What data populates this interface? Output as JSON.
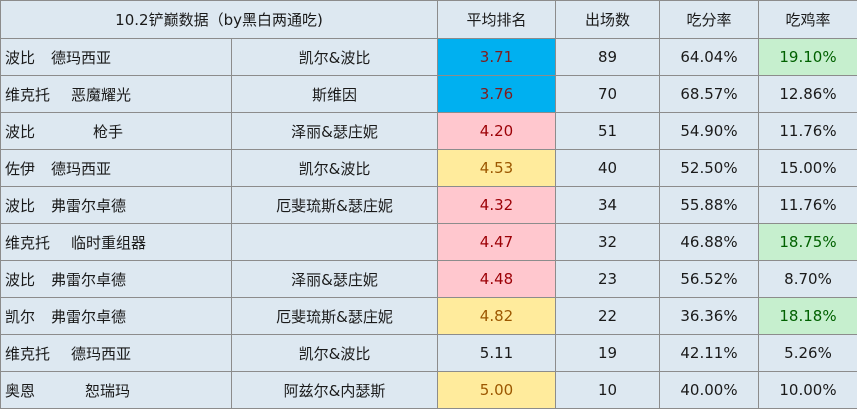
{
  "header": {
    "title": "10.2铲巅数据（by黑白两通吃)",
    "col_rank": "平均排名",
    "col_games": "出场数",
    "col_score": "吃分率",
    "col_win": "吃鸡率"
  },
  "colors": {
    "page_bg": "#dde8f1",
    "blue": "#00b0f0",
    "pink": "#ffc7ce",
    "yellow": "#ffeb9c",
    "green": "#c6efce"
  },
  "rows": [
    {
      "hero": "波比",
      "piece": "德玛西亚",
      "comp": "凯尔&波比",
      "rank": "3.71",
      "games": "89",
      "score": "64.04%",
      "win": "19.10%"
    },
    {
      "hero": "维克托",
      "piece": "恶魔耀光",
      "comp": "斯维因",
      "rank": "3.76",
      "games": "70",
      "score": "68.57%",
      "win": "12.86%"
    },
    {
      "hero": "波比",
      "piece": "枪手",
      "comp": "泽丽&瑟庄妮",
      "rank": "4.20",
      "games": "51",
      "score": "54.90%",
      "win": "11.76%"
    },
    {
      "hero": "佐伊",
      "piece": "德玛西亚",
      "comp": "凯尔&波比",
      "rank": "4.53",
      "games": "40",
      "score": "52.50%",
      "win": "15.00%"
    },
    {
      "hero": "波比",
      "piece": "弗雷尔卓德",
      "comp": "厄斐琉斯&瑟庄妮",
      "rank": "4.32",
      "games": "34",
      "score": "55.88%",
      "win": "11.76%"
    },
    {
      "hero": "维克托",
      "piece": "临时重组器",
      "comp": "",
      "rank": "4.47",
      "games": "32",
      "score": "46.88%",
      "win": "18.75%"
    },
    {
      "hero": "波比",
      "piece": "弗雷尔卓德",
      "comp": "泽丽&瑟庄妮",
      "rank": "4.48",
      "games": "23",
      "score": "56.52%",
      "win": "8.70%"
    },
    {
      "hero": "凯尔",
      "piece": "弗雷尔卓德",
      "comp": "厄斐琉斯&瑟庄妮",
      "rank": "4.82",
      "games": "22",
      "score": "36.36%",
      "win": "18.18%"
    },
    {
      "hero": "维克托",
      "piece": "德玛西亚",
      "comp": "凯尔&波比",
      "rank": "5.11",
      "games": "19",
      "score": "42.11%",
      "win": "5.26%"
    },
    {
      "hero": "奥恩",
      "piece": "恕瑞玛",
      "comp": "阿兹尔&内瑟斯",
      "rank": "5.00",
      "games": "10",
      "score": "40.00%",
      "win": "10.00%"
    }
  ]
}
